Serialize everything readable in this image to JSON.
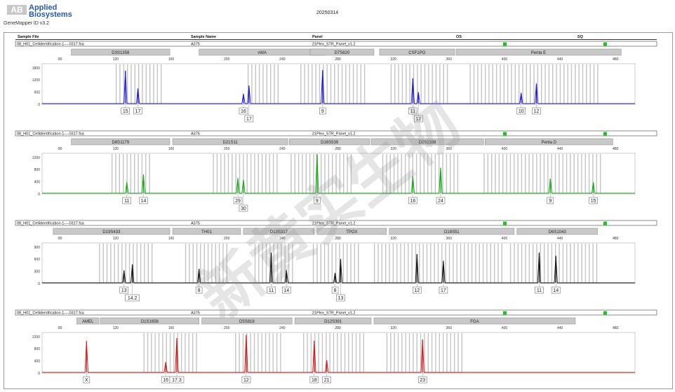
{
  "header": {
    "brand_line1": "Applied",
    "brand_line2": "Biosystems",
    "logo_letters": "AB",
    "app_version": "GeneMapper ID v3.2",
    "date": "20250314"
  },
  "table_columns": [
    "Sample File",
    "Sample Name",
    "Panel",
    "OS",
    "SQ"
  ],
  "watermark": "新黄实生物",
  "chart_data": [
    {
      "type": "line",
      "dye": "blue",
      "color": "#1b1bd0",
      "sample_file": "08_H01_Cellidentification-1----0317.fsa",
      "sample_name": "A375",
      "panel": "21Plex_STR_Panel_v1.2",
      "os_color": "#1ec41e",
      "sq_color": "#1ec41e",
      "x_ticks": [
        80,
        120,
        160,
        200,
        240,
        280,
        320,
        360,
        400,
        440,
        480
      ],
      "xlim": [
        67,
        494
      ],
      "y_ticks": [
        0,
        600,
        1200,
        1800
      ],
      "ylim": [
        0,
        2000
      ],
      "markers": [
        {
          "name": "D3S1358",
          "start": 88,
          "end": 159
        },
        {
          "name": "vWA",
          "start": 180,
          "end": 271
        },
        {
          "name": "D7S820",
          "start": 260,
          "end": 306
        },
        {
          "name": "CSF1PO",
          "start": 310,
          "end": 364
        },
        {
          "name": "Penta E",
          "start": 365,
          "end": 484
        }
      ],
      "bins": [
        [
          120,
          153
        ],
        [
          215,
          238
        ],
        [
          253,
          300
        ],
        [
          318,
          360
        ],
        [
          375,
          468
        ]
      ],
      "peaks": [
        {
          "x": 127,
          "h": 1650,
          "label": "15"
        },
        {
          "x": 136,
          "h": 780,
          "label": "17"
        },
        {
          "x": 212,
          "h": 520,
          "label": "16"
        },
        {
          "x": 216,
          "h": 920,
          "label": "17"
        },
        {
          "x": 269,
          "h": 1680,
          "label": "9"
        },
        {
          "x": 334,
          "h": 1280,
          "label": "11"
        },
        {
          "x": 338,
          "h": 600,
          "label": "12"
        },
        {
          "x": 412,
          "h": 560,
          "label": "10"
        },
        {
          "x": 423,
          "h": 1020,
          "label": "12"
        }
      ]
    },
    {
      "type": "line",
      "dye": "green",
      "color": "#18a818",
      "sample_file": "08_H01_Cellidentification-1----0317.fsa",
      "sample_name": "A375",
      "panel": "21Plex_STR_Panel_v1.2",
      "os_color": "#1ec41e",
      "sq_color": "#1ec41e",
      "x_ticks": [
        80,
        120,
        160,
        200,
        240,
        280,
        320,
        360,
        400,
        440,
        480
      ],
      "xlim": [
        67,
        494
      ],
      "y_ticks": [
        0,
        400,
        800,
        1200
      ],
      "ylim": [
        0,
        1333
      ],
      "markers": [
        {
          "name": "D8S1179",
          "start": 88,
          "end": 159
        },
        {
          "name": "D21S11",
          "start": 161,
          "end": 244
        },
        {
          "name": "D16S539",
          "start": 245,
          "end": 303
        },
        {
          "name": "D2S1338",
          "start": 304,
          "end": 385
        },
        {
          "name": "Penta D",
          "start": 386,
          "end": 478
        }
      ],
      "bins": [
        [
          117,
          146
        ],
        [
          190,
          236
        ],
        [
          246,
          290
        ],
        [
          312,
          368
        ],
        [
          385,
          470
        ]
      ],
      "peaks": [
        {
          "x": 128,
          "h": 380,
          "label": "11"
        },
        {
          "x": 140,
          "h": 640,
          "label": "14"
        },
        {
          "x": 208,
          "h": 520,
          "label": "29"
        },
        {
          "x": 212,
          "h": 460,
          "label": "30"
        },
        {
          "x": 265,
          "h": 1300,
          "label": "9"
        },
        {
          "x": 334,
          "h": 580,
          "label": "16"
        },
        {
          "x": 354,
          "h": 860,
          "label": "24"
        },
        {
          "x": 433,
          "h": 500,
          "label": "9"
        },
        {
          "x": 464,
          "h": 380,
          "label": "15"
        }
      ]
    },
    {
      "type": "line",
      "dye": "black",
      "color": "#111111",
      "sample_file": "08_H01_Cellidentification-1----0317.fsa",
      "sample_name": "A375",
      "panel": "21Plex_STR_Panel_v1.2",
      "os_color": "#1ec41e",
      "sq_color": "#1ec41e",
      "x_ticks": [
        80,
        120,
        160,
        200,
        240,
        280,
        320,
        360,
        400,
        440,
        480
      ],
      "xlim": [
        67,
        494
      ],
      "y_ticks": [
        0,
        300,
        600,
        900
      ],
      "ylim": [
        0,
        1000
      ],
      "markers": [
        {
          "name": "D19S433",
          "start": 75,
          "end": 159
        },
        {
          "name": "TH01",
          "start": 161,
          "end": 210
        },
        {
          "name": "D13S317",
          "start": 212,
          "end": 263
        },
        {
          "name": "TPOX",
          "start": 265,
          "end": 315
        },
        {
          "name": "D18S51",
          "start": 317,
          "end": 407
        },
        {
          "name": "D6S1043",
          "start": 409,
          "end": 467
        }
      ],
      "bins": [
        [
          108,
          146
        ],
        [
          170,
          200
        ],
        [
          220,
          248
        ],
        [
          262,
          296
        ],
        [
          306,
          398
        ],
        [
          404,
          468
        ]
      ],
      "peaks": [
        {
          "x": 126,
          "h": 320,
          "label": "13"
        },
        {
          "x": 132,
          "h": 470,
          "label": "14.2"
        },
        {
          "x": 180,
          "h": 360,
          "label": "8"
        },
        {
          "x": 232,
          "h": 760,
          "label": "11"
        },
        {
          "x": 243,
          "h": 330,
          "label": "14"
        },
        {
          "x": 278,
          "h": 260,
          "label": "8"
        },
        {
          "x": 282,
          "h": 600,
          "label": "13"
        },
        {
          "x": 337,
          "h": 720,
          "label": "12"
        },
        {
          "x": 356,
          "h": 560,
          "label": "17"
        },
        {
          "x": 425,
          "h": 760,
          "label": "11"
        },
        {
          "x": 437,
          "h": 680,
          "label": "14"
        }
      ]
    },
    {
      "type": "line",
      "dye": "red",
      "color": "#d11a1a",
      "sample_file": "08_H01_Cellidentification-1----0317.fsa",
      "sample_name": "A375",
      "panel": "21Plex_STR_Panel_v1.2",
      "os_color": "#1ec41e",
      "sq_color": "#1ec41e",
      "x_ticks": [
        80,
        120,
        160,
        200,
        240,
        280,
        320,
        360,
        400,
        440,
        480
      ],
      "xlim": [
        67,
        494
      ],
      "y_ticks": [
        0,
        400,
        800,
        1200
      ],
      "ylim": [
        0,
        1333
      ],
      "markers": [
        {
          "name": "AMEL",
          "start": 92,
          "end": 108
        },
        {
          "name": "D1S1656",
          "start": 109,
          "end": 180
        },
        {
          "name": "D5S818",
          "start": 182,
          "end": 247
        },
        {
          "name": "D12S391",
          "start": 249,
          "end": 304
        },
        {
          "name": "FGA",
          "start": 306,
          "end": 451
        }
      ],
      "bins": [
        [
          140,
          178
        ],
        [
          206,
          240
        ],
        [
          255,
          300
        ],
        [
          315,
          370
        ]
      ],
      "peaks": [
        {
          "x": 99,
          "h": 1050,
          "label": "X"
        },
        {
          "x": 156,
          "h": 360,
          "label": "16"
        },
        {
          "x": 164,
          "h": 1150,
          "label": "17.3"
        },
        {
          "x": 214,
          "h": 1250,
          "label": "12"
        },
        {
          "x": 263,
          "h": 1060,
          "label": "18"
        },
        {
          "x": 272,
          "h": 420,
          "label": "21"
        },
        {
          "x": 341,
          "h": 1100,
          "label": "23"
        }
      ]
    }
  ]
}
